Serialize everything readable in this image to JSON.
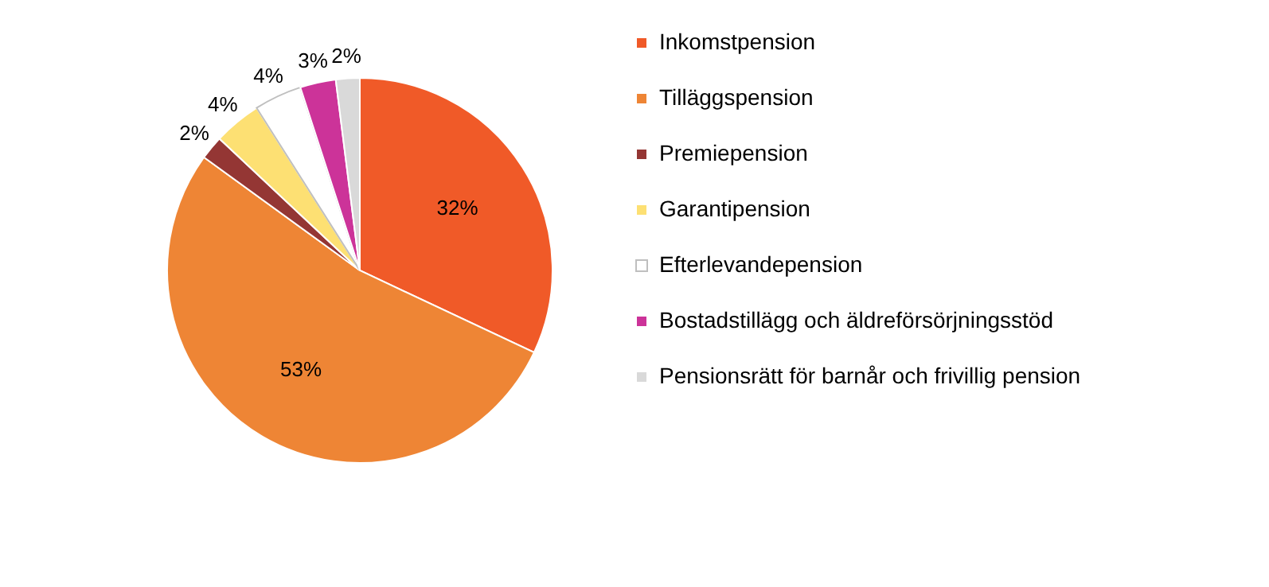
{
  "chart_data": {
    "type": "pie",
    "categories": [
      "Inkomstpension",
      "Tilläggspension",
      "Premiepension",
      "Garantipension",
      "Efterlevandepension",
      "Bostadstillägg och äldreförsörjningsstöd",
      "Pensionsrätt för barnår och frivillig pension"
    ],
    "values": [
      32,
      53,
      2,
      4,
      4,
      3,
      2
    ],
    "value_labels": [
      "32%",
      "53%",
      "2%",
      "4%",
      "4%",
      "3%",
      "2%"
    ],
    "colors": [
      "#f05a28",
      "#ee8535",
      "#943634",
      "#fde073",
      "#ffffff",
      "#cc3399",
      "#d9d9d9"
    ],
    "legend": "right"
  }
}
